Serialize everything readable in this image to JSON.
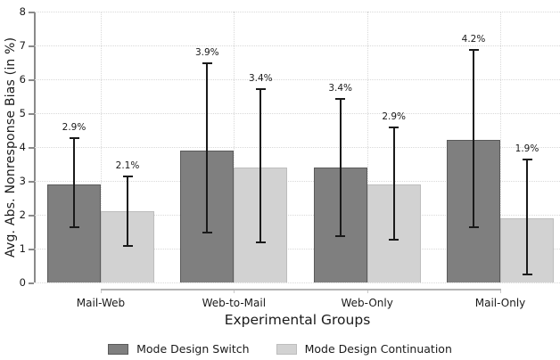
{
  "chart_data": {
    "type": "bar",
    "title": "",
    "xlabel": "Experimental Groups",
    "ylabel": "Avg. Abs. Nonresponse Bias (in %)",
    "categories": [
      "Mail-Web",
      "Web-to-Mail",
      "Web-Only",
      "Mail-Only"
    ],
    "series": [
      {
        "name": "Mode Design Switch",
        "color": "#7f7f7f",
        "border_color": "#5a5a5a",
        "values": [
          2.9,
          3.9,
          3.4,
          4.2
        ],
        "value_labels": [
          "2.9%",
          "3.9%",
          "3.4%",
          "4.2%"
        ],
        "ci_low": [
          1.6,
          1.45,
          1.35,
          1.6
        ],
        "ci_high": [
          4.3,
          6.5,
          5.45,
          6.9
        ]
      },
      {
        "name": "Mode Design Continuation",
        "color": "#d2d2d2",
        "border_color": "#bdbdbd",
        "values": [
          2.1,
          3.4,
          2.9,
          1.9
        ],
        "value_labels": [
          "2.1%",
          "3.4%",
          "2.9%",
          "1.9%"
        ],
        "ci_low": [
          1.05,
          1.15,
          1.25,
          0.2
        ],
        "ci_high": [
          3.15,
          5.75,
          4.6,
          3.65
        ]
      }
    ],
    "ylim": [
      0,
      8
    ],
    "yticks": [
      0,
      1,
      2,
      3,
      4,
      5,
      6,
      7,
      8
    ],
    "grid": "dotted horizontal at each y tick, dotted vertical at each category center",
    "legend_position": "bottom-center",
    "error_bars": true,
    "colors": {
      "background": "#ffffff",
      "grid": "#d9d9d9",
      "axis": "#8a8a8a",
      "error_bar": "#1a1a1a",
      "text": "#1a1a1a",
      "baseline": "#b3b3b3"
    }
  }
}
